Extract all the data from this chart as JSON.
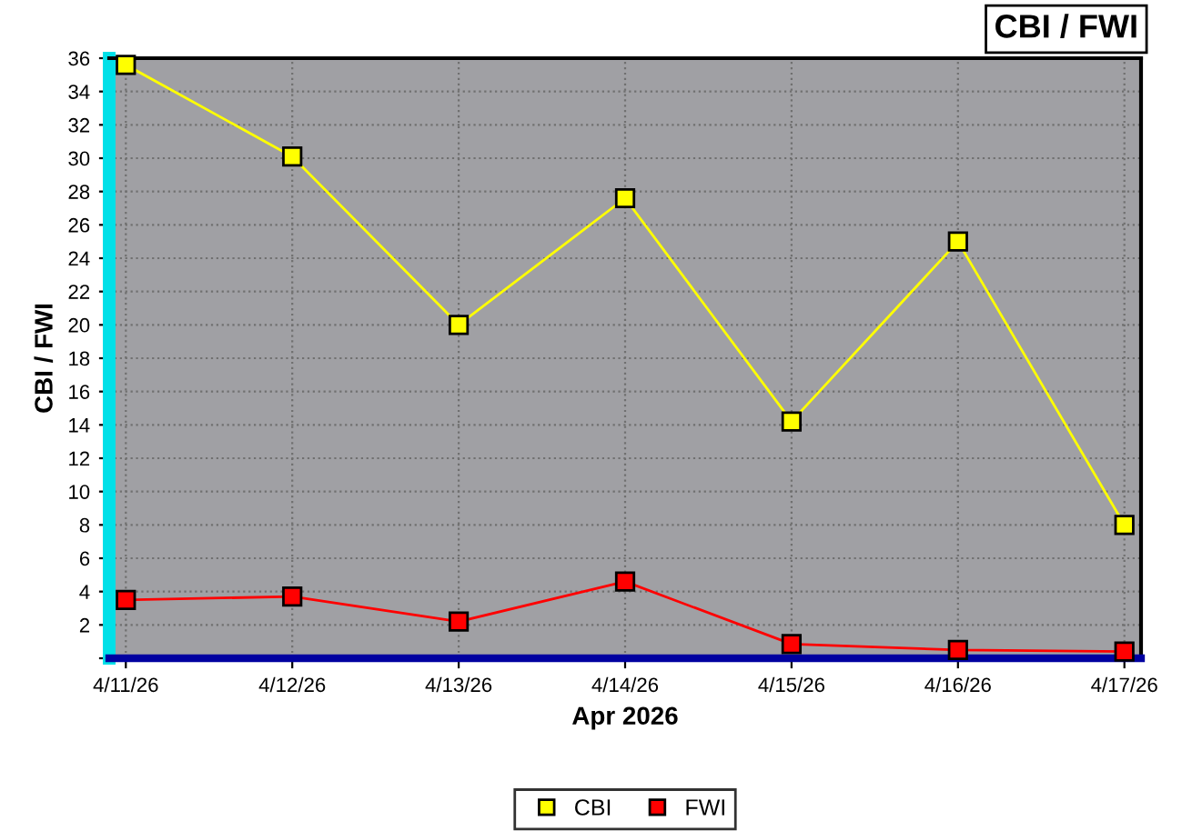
{
  "chart_data": {
    "type": "line",
    "title": "CBI / FWI",
    "xlabel": "Apr 2026",
    "ylabel": "CBI / FWI",
    "categories": [
      "4/11/26",
      "4/12/26",
      "4/13/26",
      "4/14/26",
      "4/15/26",
      "4/16/26",
      "4/17/26"
    ],
    "series": [
      {
        "name": "CBI",
        "color": "#ffff00",
        "values": [
          35.6,
          30.1,
          20.0,
          27.6,
          14.2,
          25.0,
          8.0
        ]
      },
      {
        "name": "FWI",
        "color": "#ff0000",
        "values": [
          3.5,
          3.7,
          2.2,
          4.6,
          0.85,
          0.5,
          0.4
        ]
      }
    ],
    "ylim": [
      0,
      36
    ],
    "yticks": [
      {
        "value": 0,
        "label": null
      },
      2,
      4,
      6,
      8,
      10,
      12,
      14,
      16,
      18,
      20,
      22,
      24,
      26,
      28,
      30,
      32,
      34,
      36
    ],
    "grid": true,
    "legend": "bottom",
    "marker": "square",
    "line_style": "solid"
  }
}
